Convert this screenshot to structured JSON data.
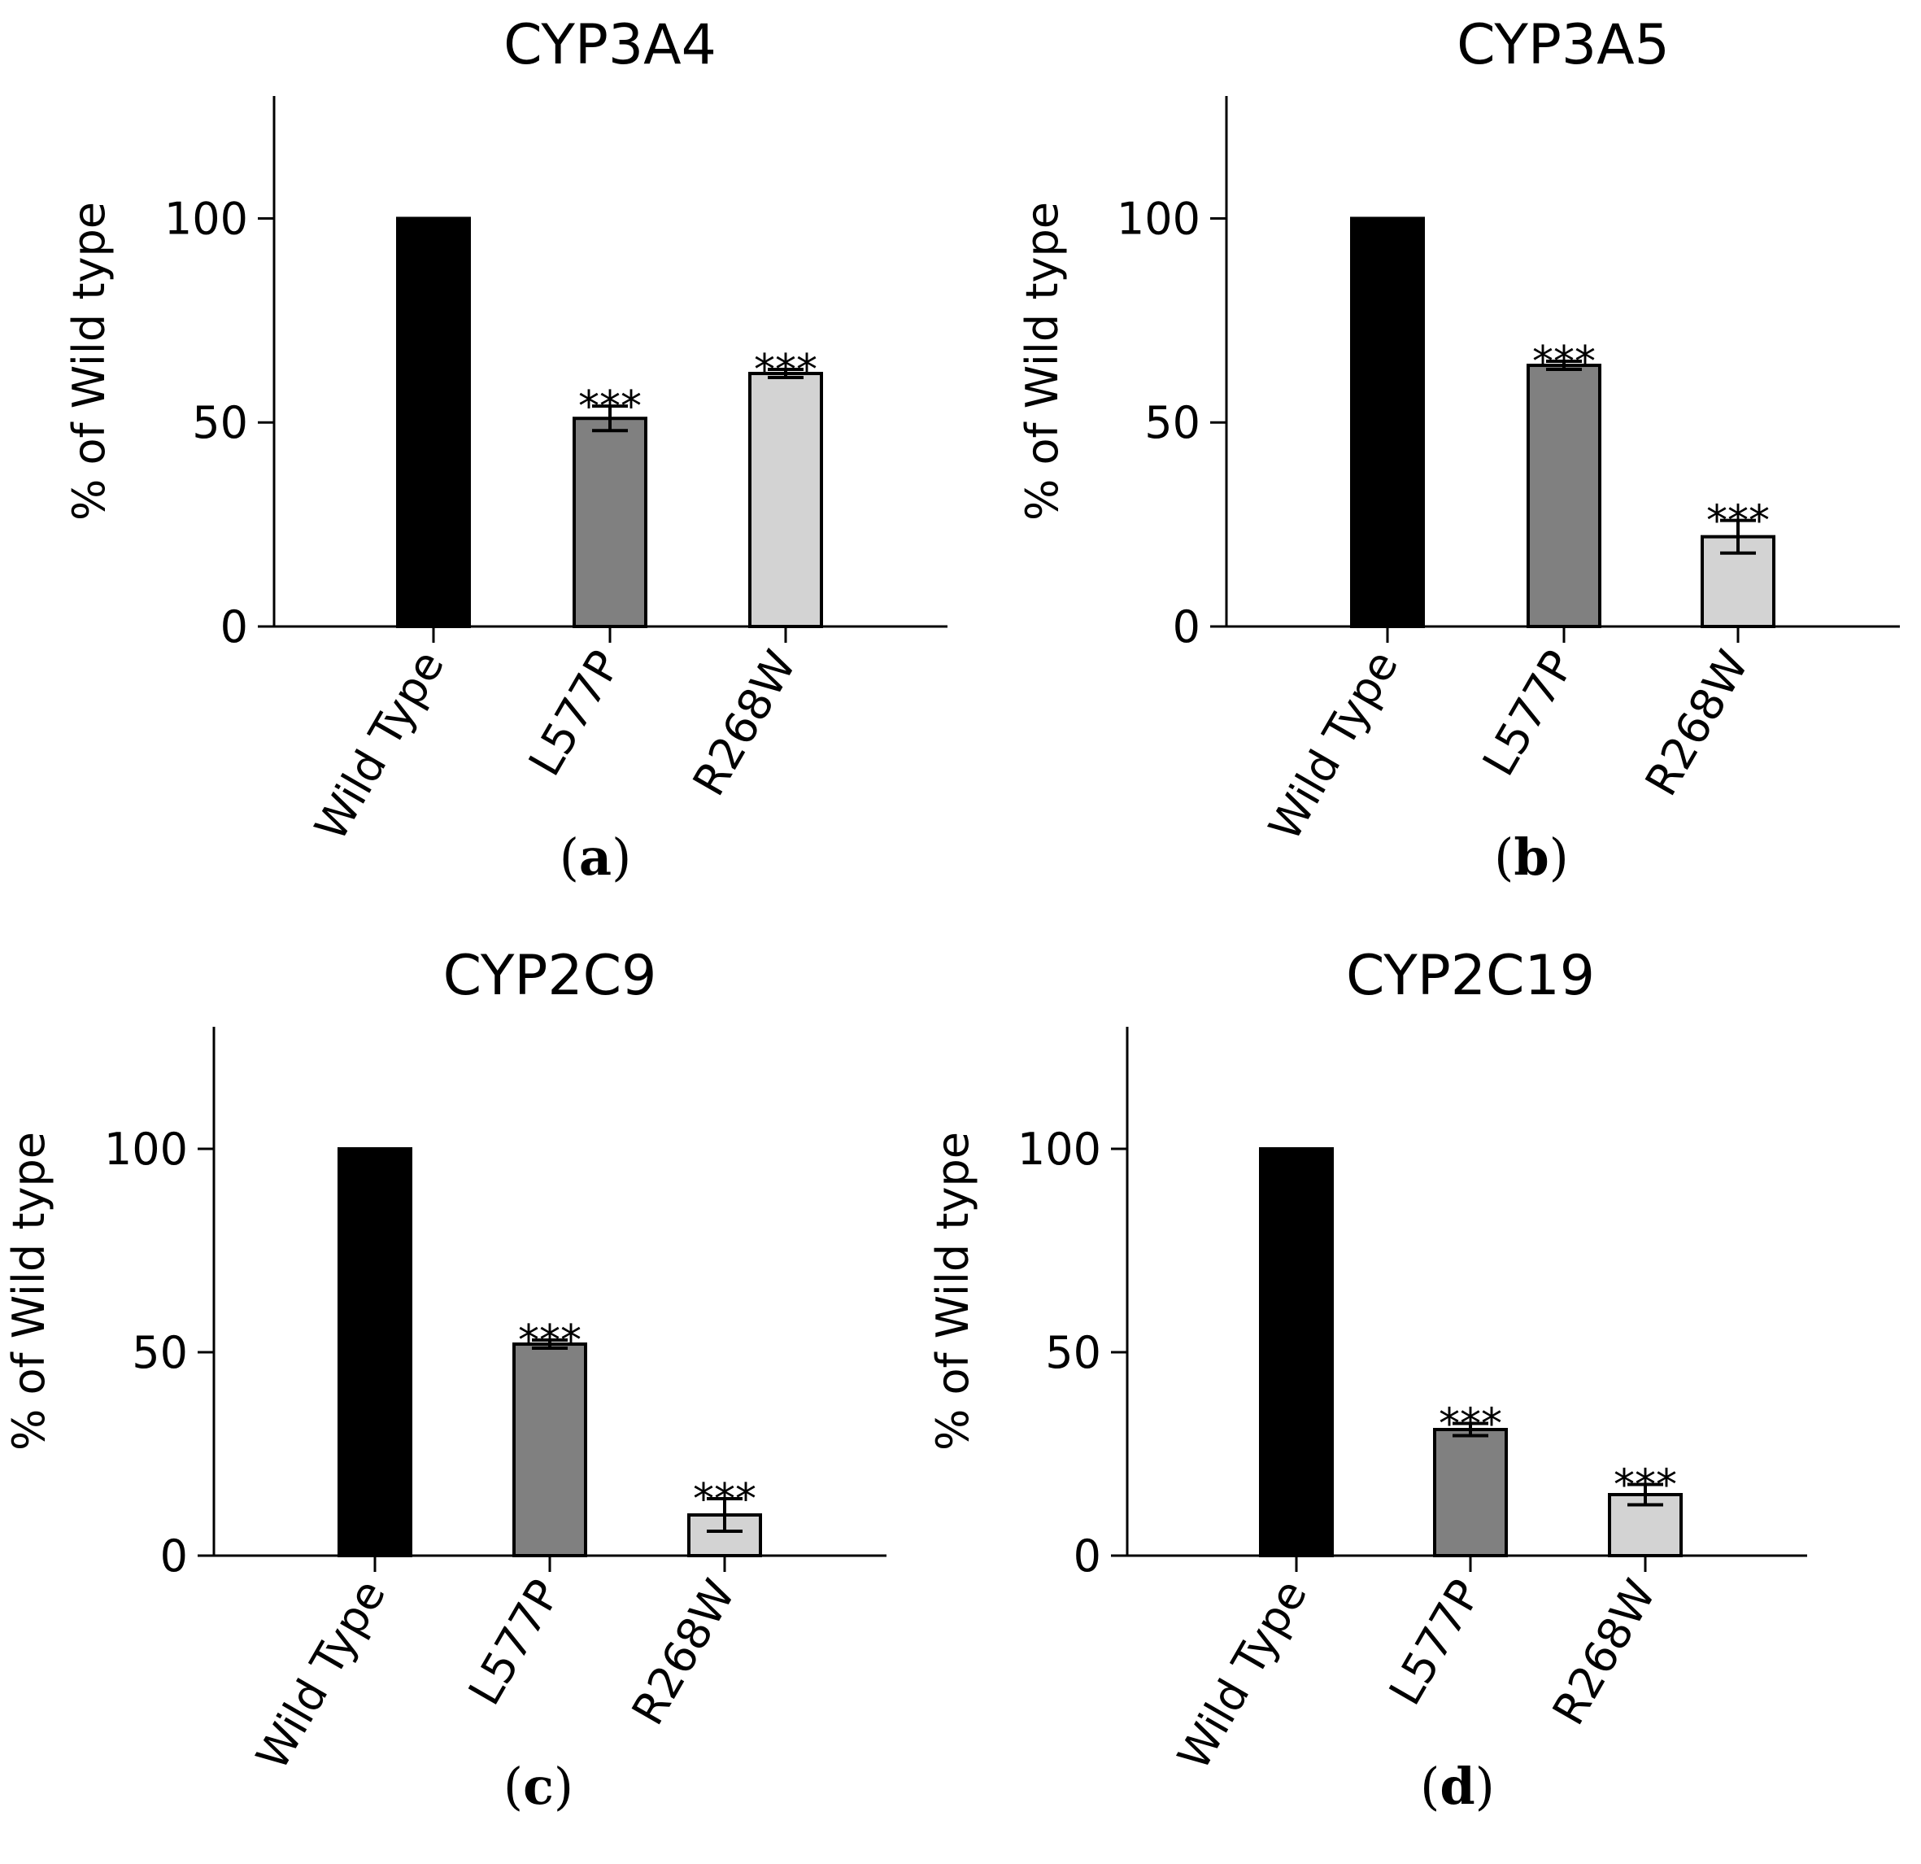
{
  "chart_data": [
    {
      "type": "bar",
      "title": "CYP3A4",
      "panel_label": "a",
      "ylabel": "% of Wild type",
      "ylim": [
        0,
        130
      ],
      "yticks": [
        0,
        50,
        100
      ],
      "categories": [
        "Wild Type",
        "L577P",
        "R268W"
      ],
      "values": [
        100,
        51,
        62
      ],
      "errors": [
        0,
        3,
        1
      ],
      "significance": [
        "",
        "***",
        "***"
      ],
      "colors": [
        "#000000",
        "#808080",
        "#d3d3d3"
      ]
    },
    {
      "type": "bar",
      "title": "CYP3A5",
      "panel_label": "b",
      "ylabel": "% of Wild type",
      "ylim": [
        0,
        130
      ],
      "yticks": [
        0,
        50,
        100
      ],
      "categories": [
        "Wild Type",
        "L577P",
        "R268W"
      ],
      "values": [
        100,
        64,
        22
      ],
      "errors": [
        0,
        1,
        4
      ],
      "significance": [
        "",
        "***",
        "***"
      ],
      "colors": [
        "#000000",
        "#808080",
        "#d3d3d3"
      ]
    },
    {
      "type": "bar",
      "title": "CYP2C9",
      "panel_label": "c",
      "ylabel": "% of Wild type",
      "ylim": [
        0,
        130
      ],
      "yticks": [
        0,
        50,
        100
      ],
      "categories": [
        "Wild Type",
        "L577P",
        "R268W"
      ],
      "values": [
        100,
        52,
        10
      ],
      "errors": [
        0,
        1,
        4
      ],
      "significance": [
        "",
        "***",
        "***"
      ],
      "colors": [
        "#000000",
        "#808080",
        "#d3d3d3"
      ]
    },
    {
      "type": "bar",
      "title": "CYP2C19",
      "panel_label": "d",
      "ylabel": "% of Wild type",
      "ylim": [
        0,
        130
      ],
      "yticks": [
        0,
        50,
        100
      ],
      "categories": [
        "Wild Type",
        "L577P",
        "R268W"
      ],
      "values": [
        100,
        31,
        15
      ],
      "errors": [
        0,
        1.5,
        2.5
      ],
      "significance": [
        "",
        "***",
        "***"
      ],
      "colors": [
        "#000000",
        "#808080",
        "#d3d3d3"
      ]
    }
  ]
}
